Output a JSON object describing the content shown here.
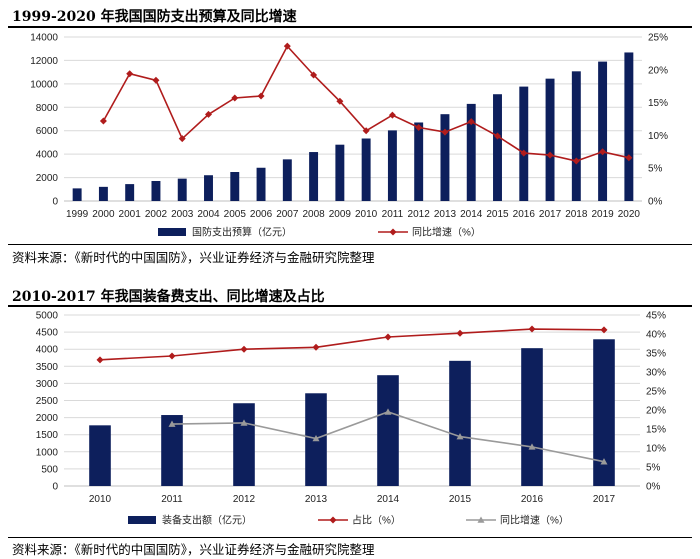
{
  "chart_data": [
    {
      "type": "bar+line",
      "title": "1999-2020 年我国国防支出预算及同比增速",
      "source": "资料来源：《新时代的中国国防》，兴业证券经济与金融研究院整理",
      "categories": [
        "1999",
        "2000",
        "2001",
        "2002",
        "2003",
        "2004",
        "2005",
        "2006",
        "2007",
        "2008",
        "2009",
        "2010",
        "2011",
        "2012",
        "2013",
        "2014",
        "2015",
        "2016",
        "2017",
        "2018",
        "2019",
        "2020"
      ],
      "y_left": {
        "min": 0,
        "max": 14000,
        "step": 2000,
        "tick_labels": [
          "0",
          "2000",
          "4000",
          "6000",
          "8000",
          "10000",
          "12000",
          "14000"
        ]
      },
      "y_right": {
        "min": 0,
        "max": 25,
        "step": 5,
        "tick_labels": [
          "0%",
          "5%",
          "10%",
          "15%",
          "20%",
          "25%"
        ]
      },
      "series": [
        {
          "name": "国防支出预算（亿元）",
          "kind": "bar",
          "axis": "left",
          "color": "#0d1f5c",
          "values": [
            1077,
            1208,
            1442,
            1708,
            1908,
            2200,
            2475,
            2838,
            3555,
            4179,
            4807,
            5335,
            6028,
            6703,
            7411,
            8290,
            9115,
            9766,
            10444,
            11070,
            11900,
            12680
          ]
        },
        {
          "name": "同比增速（%）",
          "kind": "line",
          "axis": "right",
          "color": "#b01c1c",
          "marker": "diamond",
          "values": [
            null,
            12.2,
            19.4,
            18.4,
            9.5,
            13.2,
            15.7,
            16.0,
            23.6,
            19.2,
            15.2,
            10.7,
            13.1,
            11.2,
            10.5,
            12.1,
            9.9,
            7.3,
            7.0,
            6.1,
            7.5,
            6.6
          ]
        }
      ]
    },
    {
      "type": "bar+line",
      "title": "2010-2017 年我国装备费支出、同比增速及占比",
      "source": "资料来源：《新时代的中国国防》，兴业证券经济与金融研究院整理",
      "categories": [
        "2010",
        "2011",
        "2012",
        "2013",
        "2014",
        "2015",
        "2016",
        "2017"
      ],
      "y_left": {
        "min": 0,
        "max": 5000,
        "step": 500,
        "tick_labels": [
          "0",
          "500",
          "1000",
          "1500",
          "2000",
          "2500",
          "3000",
          "3500",
          "4000",
          "4500",
          "5000"
        ]
      },
      "y_right": {
        "min": 0,
        "max": 45,
        "step": 5,
        "tick_labels": [
          "0%",
          "5%",
          "10%",
          "15%",
          "20%",
          "25%",
          "30%",
          "35%",
          "40%",
          "45%"
        ]
      },
      "series": [
        {
          "name": "装备支出额（亿元）",
          "kind": "bar",
          "axis": "left",
          "color": "#0d1f5c",
          "values": [
            1774,
            2075,
            2420,
            2711,
            3240,
            3660,
            4030,
            4290
          ]
        },
        {
          "name": "占比（%）",
          "kind": "line",
          "axis": "right",
          "color": "#b01c1c",
          "marker": "diamond",
          "values": [
            33.2,
            34.2,
            36.0,
            36.5,
            39.2,
            40.2,
            41.3,
            41.1
          ]
        },
        {
          "name": "同比增速（%）",
          "kind": "line",
          "axis": "right",
          "color": "#9a9a9a",
          "marker": "triangle",
          "values": [
            null,
            16.3,
            16.6,
            12.5,
            19.5,
            13.0,
            10.3,
            6.4
          ]
        }
      ]
    }
  ]
}
